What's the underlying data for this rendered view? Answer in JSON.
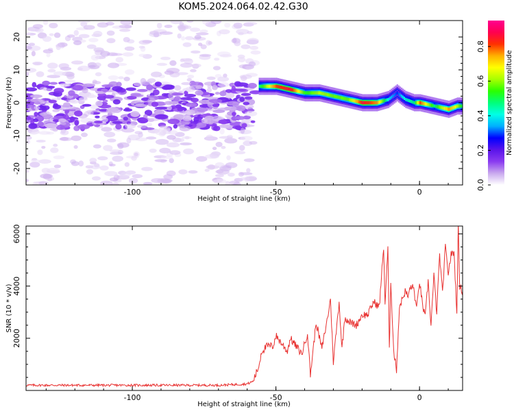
{
  "title": "KOM5.2024.064.02.42.G30",
  "colors": {
    "snr_line": "#e8302f",
    "frame": "#000000"
  },
  "chart_data": [
    {
      "type": "heatmap",
      "xlabel": "Height of straight line (km)",
      "ylabel": "Frequency (Hz)",
      "xlim": [
        -137,
        15
      ],
      "ylim": [
        -25,
        25
      ],
      "x_ticks": [
        -100,
        -50,
        0
      ],
      "y_ticks": [
        -20,
        -10,
        0,
        10,
        20
      ],
      "colorbar": {
        "label": "Normalized spectral amplitude",
        "range": [
          0,
          0.95
        ],
        "ticks": [
          "0.0",
          "0.2",
          "0.4",
          "0.6",
          "0.8"
        ],
        "colormap": [
          "#ffffff",
          "#c9a8ee",
          "#8a3bf0",
          "#5a14ea",
          "#0000ff",
          "#00b0ff",
          "#00ffe6",
          "#00ff7a",
          "#2bff00",
          "#a8ff00",
          "#ffff00",
          "#ffb000",
          "#ff3000",
          "#ff0050",
          "#ff0090"
        ]
      },
      "signal_track": {
        "x": [
          -56,
          -50,
          -45,
          -40,
          -35,
          -30,
          -25,
          -20,
          -15,
          -11,
          -8,
          -5,
          -2,
          0,
          5,
          10,
          13,
          15
        ],
        "y": [
          5,
          5,
          4,
          3,
          3,
          2,
          1,
          0,
          0,
          1,
          3,
          1,
          0,
          0,
          -1,
          -2,
          -1,
          -1
        ],
        "peak": [
          0.5,
          0.85,
          0.9,
          0.55,
          0.65,
          0.6,
          0.6,
          0.9,
          0.8,
          0.4,
          0.3,
          0.45,
          0.5,
          0.85,
          0.5,
          0.8,
          0.65,
          0.5
        ]
      },
      "noise_region": {
        "x_range": [
          -137,
          -57
        ],
        "freq_band": [
          -8,
          6
        ],
        "amplitude": "low"
      }
    },
    {
      "type": "line",
      "xlabel": "Height of straight line (km)",
      "ylabel": "SNR (10 * v/v)",
      "xlim": [
        -137,
        15
      ],
      "ylim": [
        0,
        6300
      ],
      "x_ticks": [
        -100,
        -50,
        0
      ],
      "y_ticks": [
        2000,
        4000,
        6000
      ],
      "series": [
        {
          "x": [
            -137,
            -100,
            -70,
            -60,
            -58,
            -56,
            -55,
            -53,
            -51,
            -50,
            -48,
            -46,
            -45,
            -43,
            -41,
            -39,
            -38,
            -36,
            -34,
            -32,
            -31,
            -30,
            -28,
            -27,
            -26,
            -24,
            -22,
            -20,
            -18,
            -16,
            -14,
            -12.5,
            -12,
            -11,
            -10.5,
            -10,
            -9,
            -8,
            -7,
            -6,
            -5,
            -4,
            -3,
            -2,
            -1,
            0,
            1,
            2,
            3,
            4,
            5,
            6,
            7,
            8,
            9,
            10,
            11,
            12,
            13,
            13.5,
            14,
            15
          ],
          "y": [
            200,
            200,
            200,
            250,
            350,
            900,
            1500,
            1700,
            1700,
            2100,
            1800,
            1500,
            2000,
            1700,
            1400,
            2200,
            600,
            2600,
            1600,
            2800,
            3500,
            1100,
            3400,
            1600,
            2800,
            2600,
            2500,
            2900,
            2900,
            3400,
            3200,
            5500,
            3300,
            5500,
            1500,
            4200,
            1500,
            800,
            3200,
            3500,
            3800,
            3600,
            4000,
            3900,
            3100,
            4200,
            3300,
            2800,
            4200,
            2500,
            4400,
            3000,
            5200,
            3700,
            5500,
            4500,
            5200,
            5300,
            3000,
            6300,
            4000,
            3800
          ]
        }
      ]
    }
  ]
}
